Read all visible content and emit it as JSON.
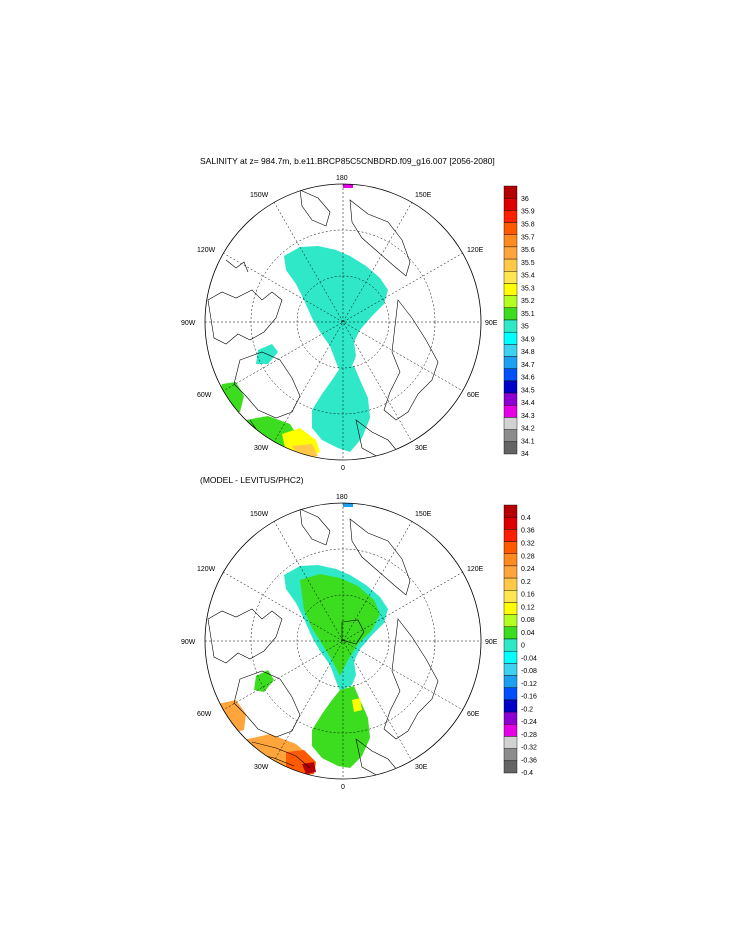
{
  "panels": [
    {
      "title": "SALINITY at z= 984.7m, b.e11.BRCP85C5CNBDRD.f09_g16.007 [2056-2080]",
      "map_labels": {
        "top": "180",
        "bottom": "0",
        "left": "90W",
        "right": "90E",
        "upper_left_1": "150W",
        "upper_left_2": "120W",
        "lower_left_1": "60W",
        "lower_left_2": "30W",
        "upper_right_1": "150E",
        "upper_right_2": "120E",
        "lower_right_1": "60E",
        "lower_right_2": "30E"
      },
      "colorbar": {
        "labels": [
          "36",
          "35.9",
          "35.8",
          "35.7",
          "35.6",
          "35.5",
          "35.4",
          "35.3",
          "35.2",
          "35.1",
          "35",
          "34.9",
          "34.8",
          "34.7",
          "34.6",
          "34.5",
          "34.4",
          "34.3",
          "34.2",
          "34.1",
          "34"
        ],
        "colors": [
          "#b40000",
          "#dc0000",
          "#ff2000",
          "#ff5a00",
          "#ff8a1e",
          "#ffa53c",
          "#ffc846",
          "#ffe650",
          "#ffff00",
          "#b4ff1e",
          "#3cdc1e",
          "#2ee8c8",
          "#00ffff",
          "#3cd2f0",
          "#1ea0f0",
          "#0050ff",
          "#0000c8",
          "#8c00d2",
          "#e600e6",
          "#d2d2d2",
          "#8c8c8c",
          "#646464"
        ]
      }
    },
    {
      "title": "(MODEL - LEVITUS/PHC2)",
      "map_labels": {
        "top": "180",
        "bottom": "0",
        "left": "90W",
        "right": "90E",
        "upper_left_1": "150W",
        "upper_left_2": "120W",
        "lower_left_1": "60W",
        "lower_left_2": "30W",
        "upper_right_1": "150E",
        "upper_right_2": "120E",
        "lower_right_1": "60E",
        "lower_right_2": "30E"
      },
      "colorbar": {
        "labels": [
          "0.4",
          "0.36",
          "0.32",
          "0.28",
          "0.24",
          "0.2",
          "0.16",
          "0.12",
          "0.08",
          "0.04",
          "0",
          "-0.04",
          "-0.08",
          "-0.12",
          "-0.16",
          "-0.2",
          "-0.24",
          "-0.28",
          "-0.32",
          "-0.36",
          "-0.4"
        ],
        "colors": [
          "#b40000",
          "#dc0000",
          "#ff2000",
          "#ff5a00",
          "#ff8a1e",
          "#ffa53c",
          "#ffc846",
          "#ffe650",
          "#ffff00",
          "#b4ff1e",
          "#3cdc1e",
          "#2ee8c8",
          "#00ffff",
          "#3cd2f0",
          "#1ea0f0",
          "#0050ff",
          "#0000c8",
          "#8c00d2",
          "#e600e6",
          "#d2d2d2",
          "#8c8c8c",
          "#646464"
        ]
      }
    }
  ]
}
